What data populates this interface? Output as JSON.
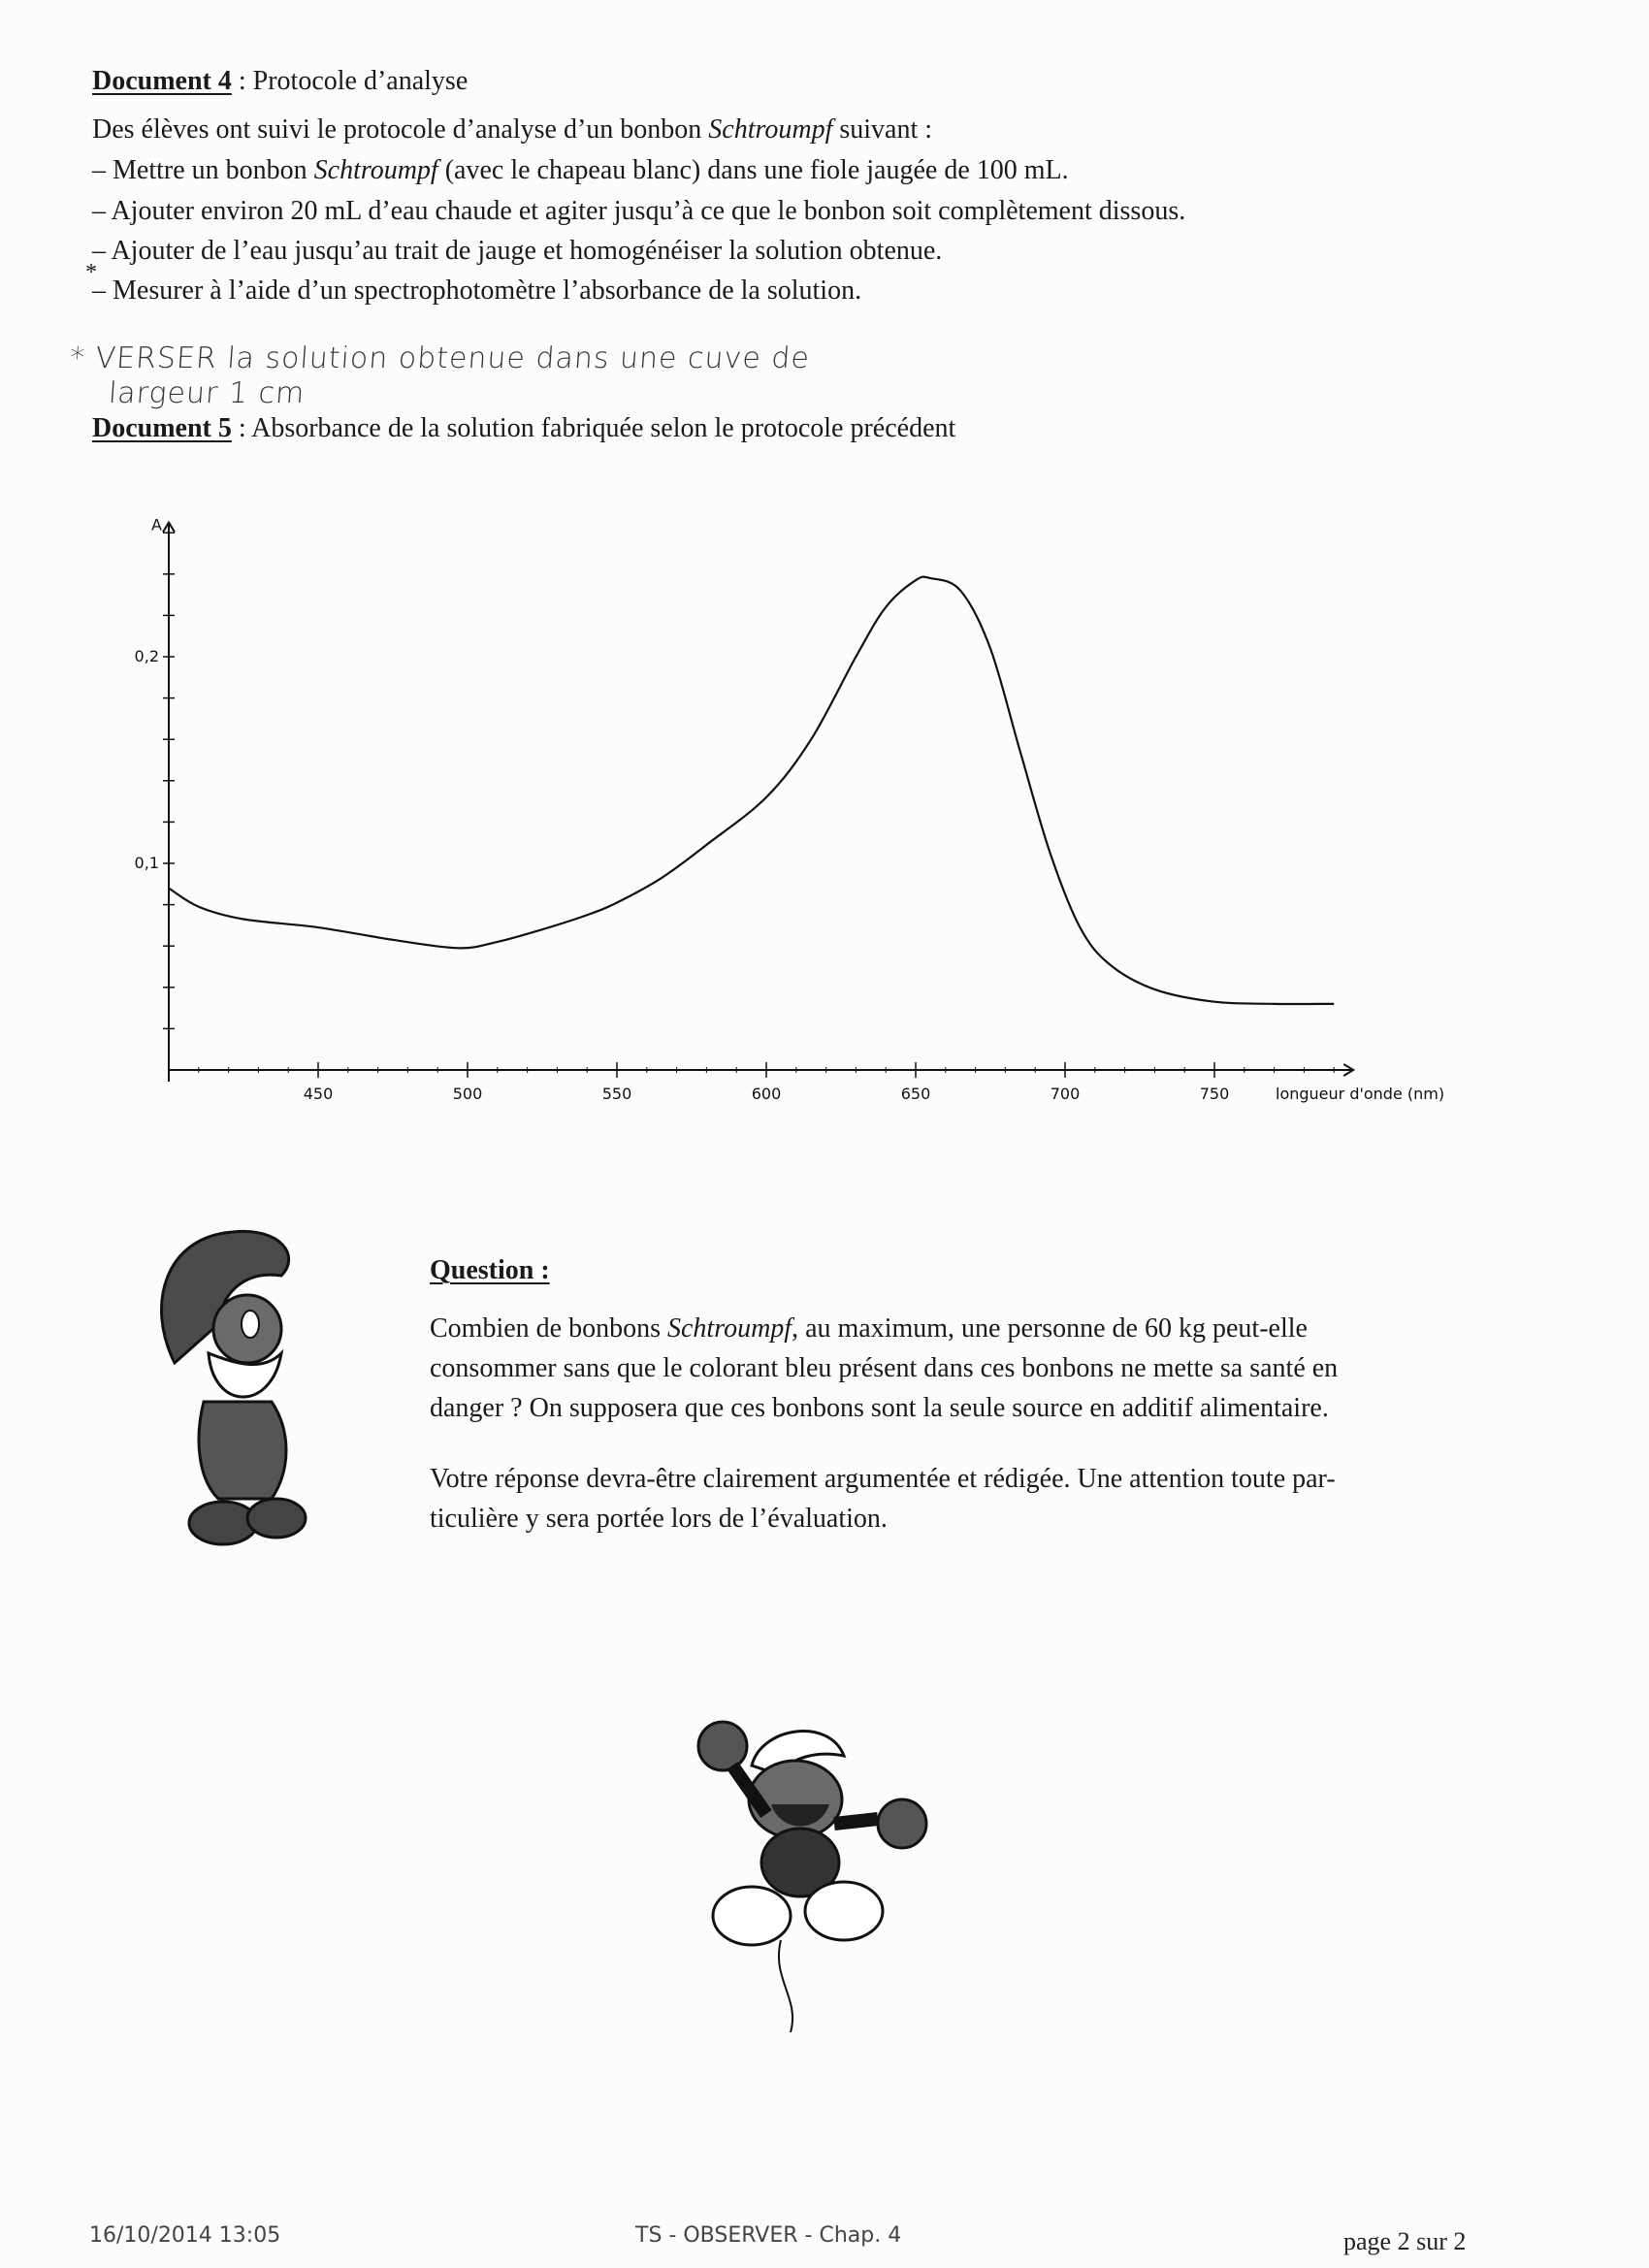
{
  "doc4": {
    "title": "Document 4",
    "subtitle": " : Protocole d’analyse",
    "intro_a": "Des élèves ont suivi le protocole d’analyse d’un bonbon ",
    "intro_em": "Schtroumpf",
    "intro_b": " suivant :",
    "steps": [
      {
        "a": "–  Mettre un bonbon ",
        "em": "Schtroumpf",
        "b": " (avec le chapeau blanc) dans une fiole jaugée de 100 mL."
      },
      {
        "a": "–  Ajouter environ 20 mL d’eau chaude et agiter jusqu’à ce que le bonbon soit complètement dissous.",
        "em": "",
        "b": ""
      },
      {
        "a": "–  Ajouter de l’eau jusqu’au trait de jauge et homogénéiser la solution obtenue.",
        "em": "",
        "b": ""
      },
      {
        "a": "–  Mesurer à l’aide d’un spectrophotomètre l’absorbance de la solution.",
        "em": "",
        "b": ""
      }
    ],
    "asterisk": "*",
    "handwritten_line1": "* VERSER la solution obtenue dans une cuve de",
    "handwritten_line2": "largeur 1 cm"
  },
  "doc5": {
    "title": "Document 5",
    "subtitle": " : Absorbance de la solution fabriquée selon le protocole précédent"
  },
  "chart_data": {
    "type": "line",
    "title": "",
    "xlabel": "longueur d'onde (nm)",
    "ylabel": "A",
    "xlim": [
      400,
      790
    ],
    "ylim": [
      0,
      0.265
    ],
    "x_ticks": [
      450,
      500,
      550,
      600,
      650,
      700,
      750
    ],
    "x_tick_labels": [
      "450",
      "500",
      "550",
      "600",
      "650",
      "700",
      "750"
    ],
    "y_ticks_minor_step": 0.02,
    "y_tick_labels": [
      {
        "value": 0.1,
        "label": "0,1"
      },
      {
        "value": 0.2,
        "label": "0,2"
      }
    ],
    "grid": false,
    "series": [
      {
        "x": [
          400,
          410,
          425,
          450,
          475,
          497,
          510,
          525,
          540,
          550,
          565,
          580,
          600,
          615,
          630,
          640,
          650,
          655,
          665,
          675,
          685,
          695,
          705,
          715,
          730,
          750,
          770,
          790
        ],
        "y": [
          0.088,
          0.079,
          0.073,
          0.069,
          0.063,
          0.059,
          0.062,
          0.068,
          0.075,
          0.081,
          0.093,
          0.109,
          0.132,
          0.16,
          0.2,
          0.224,
          0.237,
          0.238,
          0.232,
          0.204,
          0.154,
          0.105,
          0.069,
          0.051,
          0.039,
          0.033,
          0.032,
          0.032
        ]
      }
    ]
  },
  "question": {
    "title": "Question :",
    "p1_a": "Combien de bonbons ",
    "p1_em": "Schtroumpf",
    "p1_b": ", au maximum, une personne de 60 kg peut-elle",
    "p1_l2": "consommer sans que le colorant bleu présent dans ces bonbons ne mette sa santé en",
    "p1_l3": "danger ? On supposera que ces bonbons sont la seule source en additif alimentaire.",
    "p2_l1": "Votre réponse devra-être clairement argumentée et rédigée. Une attention toute par-",
    "p2_l2": "ticulière y sera portée lors de l’évaluation."
  },
  "footer": {
    "datetime": "16/10/2014   13:05",
    "course": "TS - OBSERVER - Chap. 4",
    "page": "page 2 sur 2"
  },
  "colors": {
    "ink": "#1a1a1a",
    "paper": "#fbfcfd",
    "smurf_grey": "#555555"
  }
}
